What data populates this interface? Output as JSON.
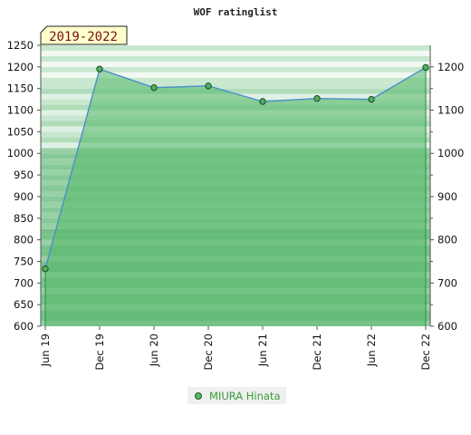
{
  "chart_data": {
    "type": "area",
    "title": "WOF ratinglist",
    "badge": "2019-2022",
    "categories": [
      "Jun 19",
      "Dec 19",
      "Jun 20",
      "Dec 20",
      "Jun 21",
      "Dec 21",
      "Jun 22",
      "Dec 22"
    ],
    "series": [
      {
        "name": "MIURA Hinata",
        "values": [
          733,
          1195,
          1152,
          1156,
          1120,
          1127,
          1125,
          1199
        ]
      }
    ],
    "ylim": [
      600,
      1250
    ],
    "left_ticks": [
      600,
      650,
      700,
      750,
      800,
      850,
      900,
      950,
      1000,
      1050,
      1100,
      1150,
      1200,
      1250
    ],
    "right_ticks": [
      600,
      700,
      800,
      900,
      1000,
      1100,
      1200
    ],
    "xlabel": "",
    "ylabel": "",
    "grid": "horizontal bands",
    "legend_position": "bottom-center",
    "colors": {
      "area_fill": "#55b86a",
      "line": "#4a90c8",
      "point_fill": "#4fae5f",
      "badge_bg": "#ffffcc",
      "legend_text": "#3a9a3a"
    }
  }
}
